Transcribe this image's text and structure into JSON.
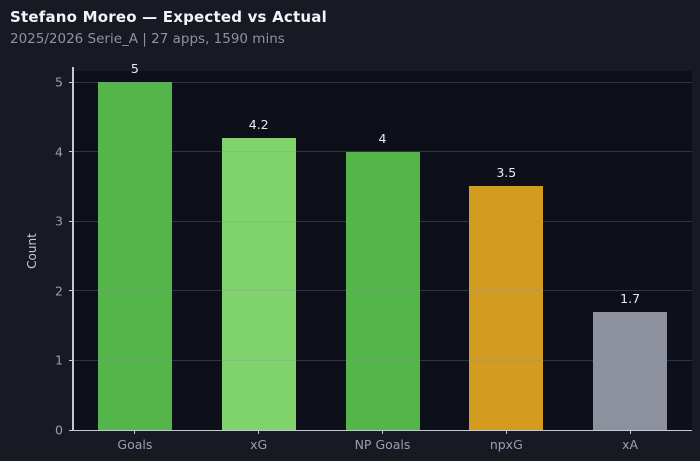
{
  "header": {
    "title": "Stefano Moreo — Expected vs Actual",
    "subtitle": "2025/2026 Serie_A | 27 apps, 1590 mins"
  },
  "colors": {
    "page_bg": "#171a23",
    "plot_bg": "#0d1019",
    "axis_spine": "#c3c8d1",
    "tick_label": "#99a0ab",
    "value_label": "#e8ebef",
    "gridline": "rgba(138,146,162,0.28)",
    "title": "#f2f4f8",
    "subtitle": "#8d939f"
  },
  "chart_data": {
    "type": "bar",
    "title": "Stefano Moreo — Expected vs Actual",
    "subtitle": "2025/2026 Serie_A | 27 apps, 1590 mins",
    "categories": [
      "Goals",
      "xG",
      "NP Goals",
      "npxG",
      "xA"
    ],
    "values": [
      5,
      4.2,
      4,
      3.5,
      1.7
    ],
    "value_labels": [
      "5",
      "4.2",
      "4",
      "3.5",
      "1.7"
    ],
    "bar_colors": [
      "#54b64a",
      "#7fd36a",
      "#54b64a",
      "#d39c21",
      "#8c919d"
    ],
    "xlabel": "",
    "ylabel": "Count",
    "ylim": [
      0,
      5.16
    ],
    "yticks": [
      0,
      1,
      2,
      3,
      4,
      5
    ],
    "grid": "horizontal-only",
    "legend": "none",
    "background": "dark"
  }
}
